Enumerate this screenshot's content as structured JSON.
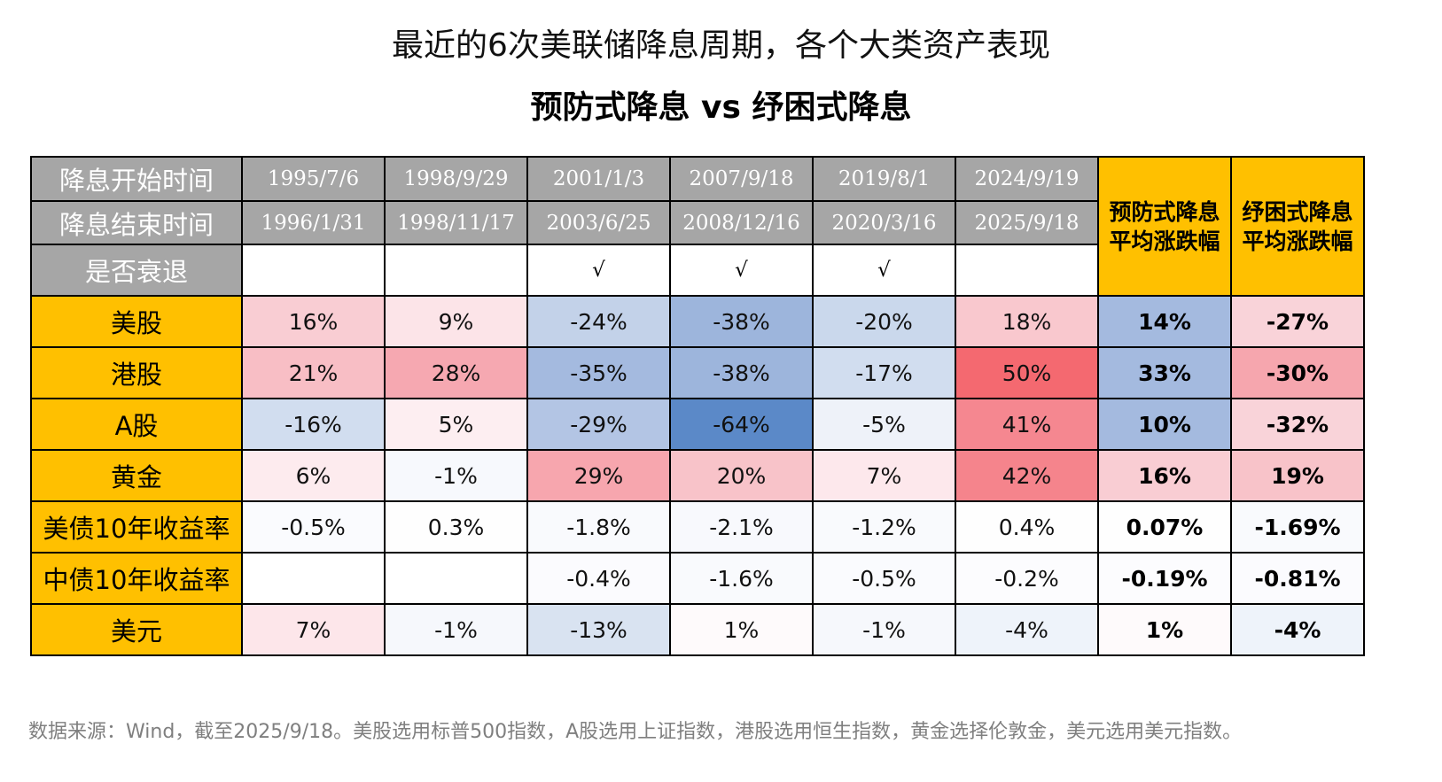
{
  "title": "最近的6次美联储降息周期，各个大类资产表现",
  "subtitle": "预防式降息 vs 纾困式降息",
  "header": {
    "start_label": "降息开始时间",
    "end_label": "降息结束时间",
    "recession_label": "是否衰退",
    "preventive_avg": "预防式降息平均涨跌幅",
    "relief_avg": "纾困式降息平均涨跌幅",
    "starts": [
      "1995/7/6",
      "1998/9/29",
      "2001/1/3",
      "2007/9/18",
      "2019/8/1",
      "2024/9/19"
    ],
    "ends": [
      "1996/1/31",
      "1998/11/17",
      "2003/6/25",
      "2008/12/16",
      "2020/3/16",
      "2025/9/18"
    ],
    "recession": [
      "",
      "",
      "√",
      "√",
      "√",
      ""
    ]
  },
  "rows": [
    {
      "label": "美股",
      "values": [
        "16%",
        "9%",
        "-24%",
        "-38%",
        "-20%",
        "18%"
      ],
      "avg": [
        "14%",
        "-27%"
      ],
      "colors": [
        "#f9cdd3",
        "#fce4e8",
        "#c3d2e9",
        "#9db5dc",
        "#cad8ec",
        "#f9c8ce"
      ],
      "avg_colors": [
        "#a4badf",
        "#f9d3d9"
      ]
    },
    {
      "label": "港股",
      "values": [
        "21%",
        "28%",
        "-35%",
        "-38%",
        "-17%",
        "50%"
      ],
      "avg": [
        "33%",
        "-30%"
      ],
      "colors": [
        "#f8bec5",
        "#f6a8b1",
        "#a4badf",
        "#9db5dc",
        "#d1ddef",
        "#f46970"
      ],
      "avg_colors": [
        "#a4badf",
        "#f6a6ae"
      ]
    },
    {
      "label": "A股",
      "values": [
        "-16%",
        "5%",
        "-29%",
        "-64%",
        "-5%",
        "41%"
      ],
      "avg": [
        "10%",
        "-32%"
      ],
      "colors": [
        "#d1ddef",
        "#fdeef1",
        "#b3c5e4",
        "#5b89c8",
        "#eef2f9",
        "#f58790"
      ],
      "avg_colors": [
        "#a4badf",
        "#f9d3d9"
      ]
    },
    {
      "label": "黄金",
      "values": [
        "6%",
        "-1%",
        "29%",
        "20%",
        "7%",
        "42%"
      ],
      "avg": [
        "16%",
        "19%"
      ],
      "colors": [
        "#fdebee",
        "#f7f9fd",
        "#f7a6ae",
        "#f8c3c9",
        "#fde8ec",
        "#f5848c"
      ],
      "avg_colors": [
        "#f9cdd3",
        "#f8c3c9"
      ]
    },
    {
      "label": "美债10年收益率",
      "values": [
        "-0.5%",
        "0.3%",
        "-1.8%",
        "-2.1%",
        "-1.2%",
        "0.4%"
      ],
      "avg": [
        "0.07%",
        "-1.69%"
      ],
      "colors": [
        "#fafbfe",
        "#fefefe",
        "#f9fafd",
        "#f8f9fd",
        "#f9fafd",
        "#fefefe"
      ],
      "avg_colors": [
        "#fefefe",
        "#f9fafd"
      ]
    },
    {
      "label": "中债10年收益率",
      "values": [
        "",
        "",
        "-0.4%",
        "-1.6%",
        "-0.5%",
        "-0.2%"
      ],
      "avg": [
        "-0.19%",
        "-0.81%"
      ],
      "colors": [
        "#ffffff",
        "#ffffff",
        "#fbfbfe",
        "#f9fafd",
        "#fafbfe",
        "#fcfcfe"
      ],
      "avg_colors": [
        "#fcfcfe",
        "#fbfbfe"
      ]
    },
    {
      "label": "美元",
      "values": [
        "7%",
        "-1%",
        "-13%",
        "1%",
        "-1%",
        "-4%"
      ],
      "avg": [
        "1%",
        "-4%"
      ],
      "colors": [
        "#fde6ea",
        "#f6f8fc",
        "#d9e3f1",
        "#fefafb",
        "#f6f8fc",
        "#eef3fa"
      ],
      "avg_colors": [
        "#fefafb",
        "#eef3fa"
      ]
    }
  ],
  "footnote": "数据来源：Wind，截至2025/9/18。美股选用标普500指数，A股选用上证指数，港股选用恒生指数，黄金选择伦敦金，美元选用美元指数。",
  "colors": {
    "header_gray": "#a6a6a6",
    "orange": "#ffc000",
    "border": "#000000"
  }
}
